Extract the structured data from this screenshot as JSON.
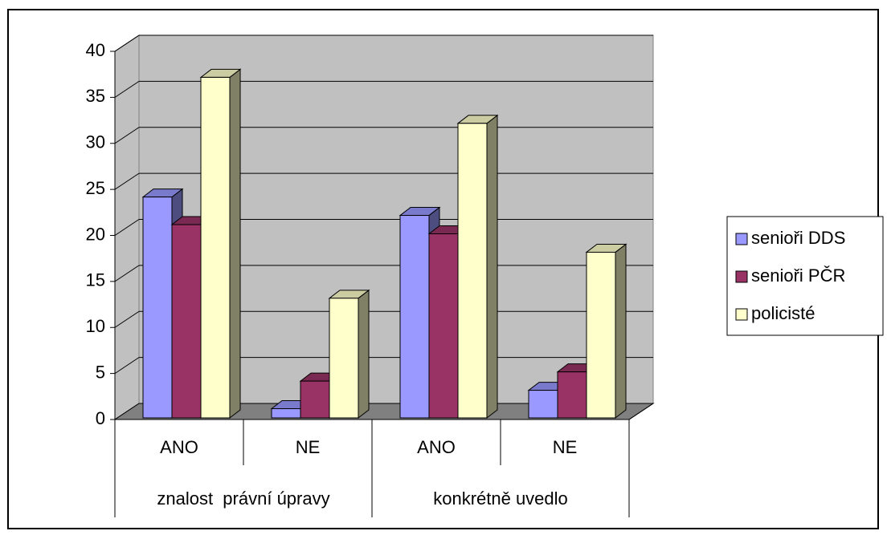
{
  "chart_data": {
    "type": "bar3d",
    "category_groups": [
      {
        "label": "znalost  právní úpravy",
        "categories": [
          "ANO",
          "NE"
        ]
      },
      {
        "label": "konkrétně uvedlo",
        "categories": [
          "ANO",
          "NE"
        ]
      }
    ],
    "series": [
      {
        "name": "senioři DDS",
        "color": "#9999ff",
        "values": [
          24,
          1,
          22,
          3
        ]
      },
      {
        "name": "senioři PČR",
        "color": "#993366",
        "values": [
          21,
          4,
          20,
          5
        ]
      },
      {
        "name": "policisté",
        "color": "#ffffcc",
        "values": [
          37,
          13,
          32,
          18
        ]
      }
    ],
    "ylim": [
      0,
      40
    ],
    "yticks": [
      0,
      5,
      10,
      15,
      20,
      25,
      30,
      35,
      40
    ],
    "grid": true,
    "legend": "right"
  }
}
